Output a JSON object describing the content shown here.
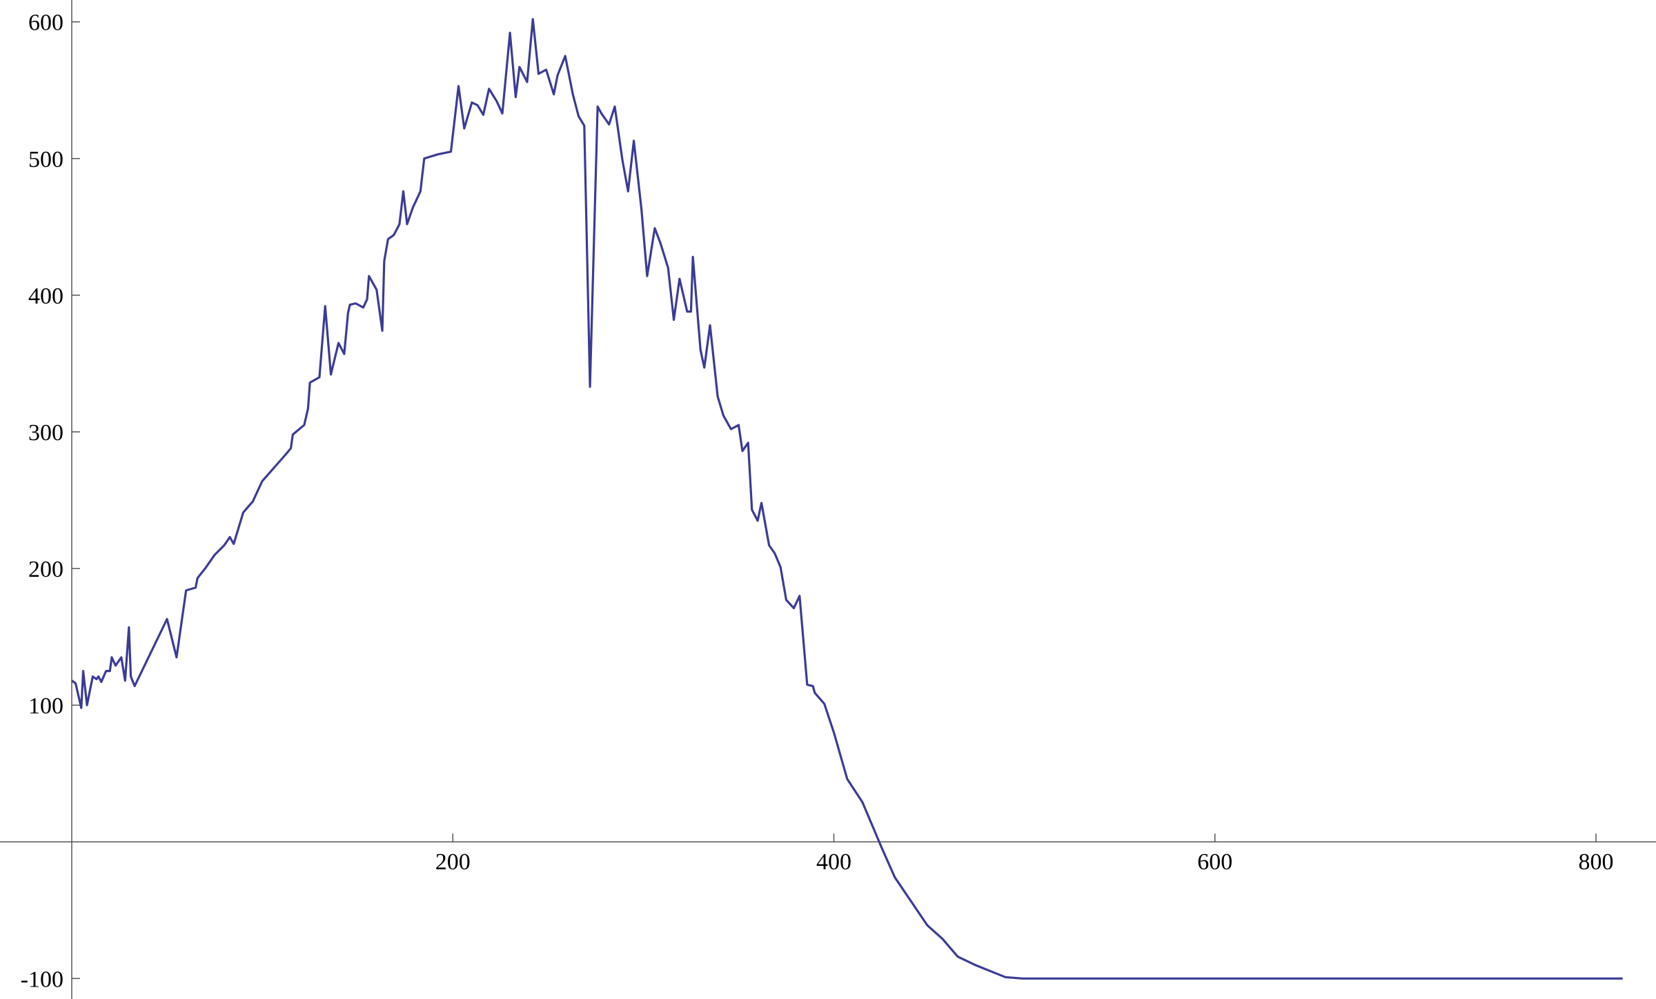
{
  "chart_data": {
    "type": "line",
    "x": [
      0,
      2,
      5,
      6,
      8,
      11,
      13,
      14,
      15.5,
      18,
      20,
      21,
      23,
      26,
      28,
      30,
      31,
      33,
      50,
      55,
      60,
      65,
      66,
      70,
      75,
      80,
      83,
      85,
      90,
      95,
      100,
      112,
      115,
      116,
      122,
      124,
      125,
      130,
      133,
      136,
      140,
      143,
      145,
      146,
      149,
      153,
      155,
      156,
      160,
      163,
      164,
      166,
      169,
      172,
      174,
      176,
      179,
      183,
      185,
      192,
      199,
      203,
      206,
      210,
      213,
      216,
      219,
      223,
      226,
      230,
      233,
      235,
      239,
      242,
      245,
      249,
      253,
      255,
      259,
      263,
      266,
      269,
      272,
      276,
      278,
      282,
      285,
      289,
      292,
      295,
      299,
      302,
      306,
      309,
      313,
      316,
      319,
      323,
      325,
      326,
      330,
      332,
      335,
      339,
      342,
      346,
      350,
      352,
      355,
      357,
      360,
      362,
      366,
      369,
      372,
      375,
      379,
      382,
      386,
      389,
      390,
      395,
      400,
      407,
      415,
      425,
      432,
      449,
      457,
      465,
      474,
      490,
      499,
      814
    ],
    "series": [
      {
        "color": "#3b3b96",
        "values": [
          118,
          116,
          98,
          125,
          100,
          121,
          119,
          121,
          117,
          125,
          125,
          135,
          129,
          135,
          118,
          157,
          121,
          114,
          163,
          135,
          184,
          186,
          193,
          200,
          210,
          217,
          223,
          218,
          241,
          249,
          264,
          283,
          288,
          298,
          305,
          317,
          336,
          340,
          392,
          342,
          365,
          357,
          387,
          393,
          394,
          391,
          397,
          414,
          404,
          374,
          425,
          441,
          444,
          452,
          476,
          452,
          464,
          476,
          500,
          503,
          505,
          553,
          522,
          541,
          539,
          532,
          551,
          542,
          533,
          592,
          545,
          567,
          556,
          602,
          562,
          565,
          547,
          561,
          575,
          547,
          531,
          524,
          333,
          538,
          533,
          525,
          538,
          499,
          476,
          513,
          463,
          414,
          449,
          438,
          420,
          382,
          412,
          388,
          388,
          428,
          360,
          347,
          378,
          326,
          312,
          302,
          305,
          286,
          292,
          243,
          235,
          248,
          217,
          211,
          201,
          177,
          171,
          180,
          115,
          114,
          109,
          101,
          80,
          46,
          29,
          -4,
          -26,
          -61,
          -71,
          -84,
          -90,
          -99,
          -100,
          -100
        ]
      }
    ],
    "xlim": [
      0,
      830
    ],
    "ylim": [
      -115,
      616
    ],
    "xticks": [
      200,
      400,
      600,
      800
    ],
    "yticks": [
      -100,
      100,
      200,
      300,
      400,
      500,
      600
    ]
  }
}
